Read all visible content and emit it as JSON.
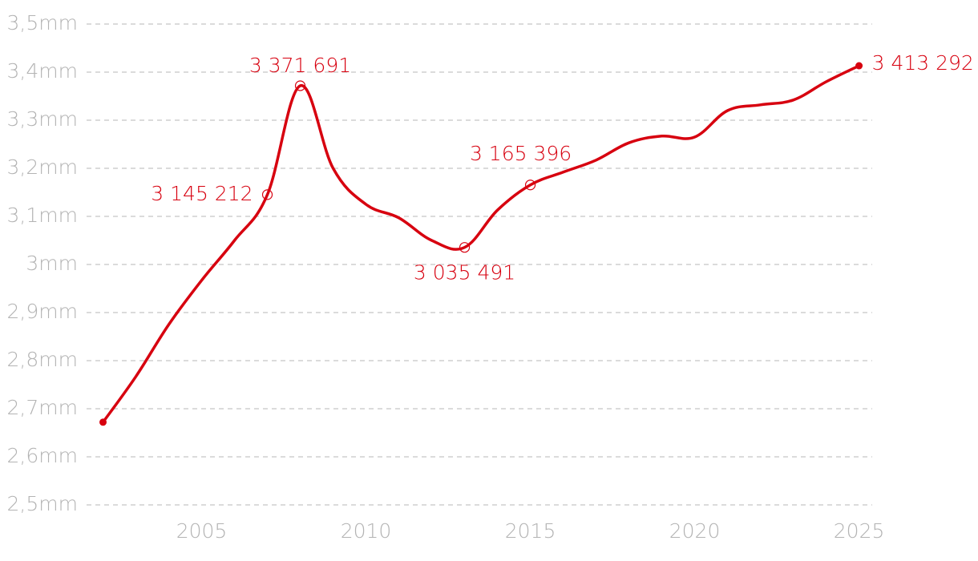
{
  "chart_data": {
    "type": "line",
    "x": [
      2002,
      2003,
      2004,
      2005,
      2006,
      2007,
      2008,
      2009,
      2010,
      2011,
      2012,
      2013,
      2014,
      2015,
      2016,
      2017,
      2018,
      2019,
      2020,
      2021,
      2022,
      2023,
      2024,
      2025
    ],
    "series": [
      {
        "color": "#d7000f",
        "values": [
          2.672,
          2.767,
          2.875,
          2.967,
          3.05,
          3.145212,
          3.371691,
          3.2,
          3.125,
          3.097,
          3.05,
          3.035491,
          3.113,
          3.165396,
          3.192,
          3.217,
          3.253,
          3.267,
          3.265,
          3.32,
          3.332,
          3.342,
          3.38,
          3.413292
        ],
        "value_labels": [
          null,
          null,
          null,
          null,
          null,
          "3 145 212",
          "3 371 691",
          null,
          null,
          null,
          null,
          "3 035 491",
          null,
          "3 165 396",
          null,
          null,
          null,
          null,
          null,
          null,
          null,
          null,
          null,
          "3 413 292"
        ]
      }
    ],
    "xlim": [
      2001.5,
      2025.4
    ],
    "xticks": [
      2005,
      2010,
      2015,
      2020,
      2025
    ],
    "ylim": [
      2.5,
      3.5
    ],
    "yticks": [
      {
        "value": 2.5,
        "label": "2,5mm"
      },
      {
        "value": 2.6,
        "label": "2,6mm"
      },
      {
        "value": 2.7,
        "label": "2,7mm"
      },
      {
        "value": 2.8,
        "label": "2,8mm"
      },
      {
        "value": 2.9,
        "label": "2,9mm"
      },
      {
        "value": 3.0,
        "label": "3mm"
      },
      {
        "value": 3.1,
        "label": "3,1mm"
      },
      {
        "value": 3.2,
        "label": "3,2mm"
      },
      {
        "value": 3.3,
        "label": "3,3mm"
      },
      {
        "value": 3.4,
        "label": "3,4mm"
      },
      {
        "value": 3.5,
        "label": "3,5mm"
      }
    ],
    "grid": true
  }
}
